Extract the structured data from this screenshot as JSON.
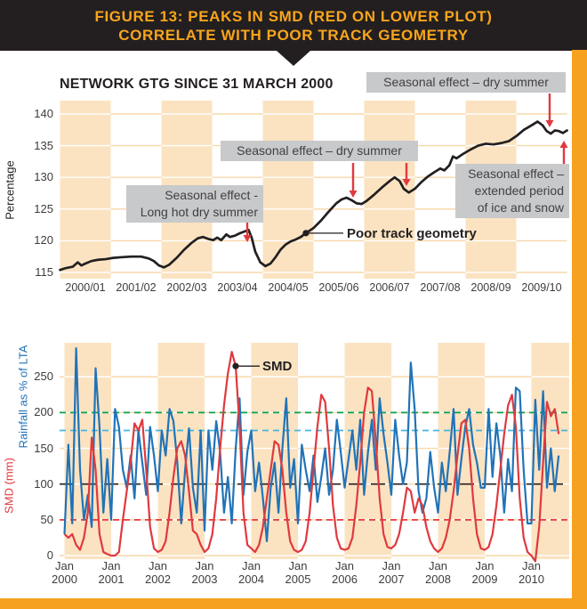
{
  "header": {
    "line1": "FIGURE 13: PEAKS IN SMD (RED ON LOWER PLOT)",
    "line2": "CORRELATE WITH POOR TRACK GEOMETRY"
  },
  "top_chart": {
    "title": "NETWORK GTG SINCE 31 MARCH 2000",
    "y_axis_label": "Percentage",
    "annotations": {
      "dry_summer_top": "Seasonal effect – dry summer",
      "dry_summer_mid": "Seasonal effect – dry summer",
      "long_hot_line1": "Seasonal effect -",
      "long_hot_line2": "Long hot dry summer",
      "ice_snow_line1": "Seasonal effect –",
      "ice_snow_line2": "extended period",
      "ice_snow_line3": "of ice and snow",
      "poor_track": "Poor track geometry"
    }
  },
  "bottom_chart": {
    "y_axis_label_rainfall": "Rainfall as % of LTA",
    "y_axis_label_smd": "SMD (mm)",
    "smd_label": "SMD",
    "month_label": "Jan"
  },
  "colors": {
    "accent_orange": "#f6a11f",
    "header_text": "#f9a51b",
    "band_orange": "#fbe3c1",
    "grid_light": "#f7d8a9",
    "annotation_bg": "#c8c9cb",
    "gtg_line": "#231f20",
    "rainfall_blue": "#2173b8",
    "smd_red": "#e0393e",
    "arrow_red": "#e0393e",
    "ref_green": "#0aa04e",
    "ref_cyan": "#45b5e2",
    "ref_black": "#231f20",
    "ref_red": "#e8393d"
  },
  "chart_data": [
    {
      "type": "line",
      "title": "NETWORK GTG SINCE 31 MARCH 2000",
      "ylabel": "Percentage",
      "ylim": [
        113.7,
        142.1
      ],
      "grid": true,
      "y_ticks": [
        140,
        135,
        130,
        125,
        120,
        115
      ],
      "x_tick_labels": [
        "2000/01",
        "2001/02",
        "2002/03",
        "2003/04",
        "2004/05",
        "2005/06",
        "2006/07",
        "2007/08",
        "2008/09",
        "2009/10"
      ],
      "x_unit": "financial years since April 2000",
      "series": [
        {
          "name": "Network GTG",
          "x": [
            0,
            0.12,
            0.25,
            0.35,
            0.42,
            0.5,
            0.62,
            0.75,
            0.9,
            1.05,
            1.2,
            1.4,
            1.6,
            1.75,
            1.85,
            1.95,
            2.05,
            2.15,
            2.3,
            2.45,
            2.6,
            2.72,
            2.82,
            2.92,
            3.02,
            3.1,
            3.18,
            3.28,
            3.35,
            3.45,
            3.55,
            3.65,
            3.72,
            3.78,
            3.85,
            3.95,
            4.05,
            4.15,
            4.25,
            4.35,
            4.45,
            4.55,
            4.65,
            4.75,
            4.85,
            5.0,
            5.15,
            5.3,
            5.45,
            5.55,
            5.65,
            5.75,
            5.85,
            5.95,
            6.05,
            6.2,
            6.35,
            6.5,
            6.6,
            6.7,
            6.78,
            6.88,
            7.0,
            7.12,
            7.25,
            7.38,
            7.5,
            7.58,
            7.68,
            7.75,
            7.82,
            7.95,
            8.1,
            8.25,
            8.4,
            8.55,
            8.7,
            8.85,
            9.0,
            9.15,
            9.3,
            9.42,
            9.52,
            9.6,
            9.68,
            9.76,
            9.84,
            9.92,
            10.0
          ],
          "values": [
            115.4,
            115.7,
            115.9,
            116.6,
            116.1,
            116.4,
            116.8,
            117.0,
            117.1,
            117.3,
            117.4,
            117.5,
            117.5,
            117.2,
            116.8,
            116.1,
            115.8,
            116.2,
            117.3,
            118.6,
            119.7,
            120.4,
            120.6,
            120.3,
            120.1,
            120.5,
            120.1,
            121.0,
            120.6,
            120.8,
            121.2,
            121.5,
            121.7,
            120.5,
            118.3,
            116.6,
            116.0,
            116.4,
            117.4,
            118.6,
            119.4,
            119.9,
            120.2,
            120.6,
            121.2,
            122.0,
            123.2,
            124.6,
            125.9,
            126.5,
            126.8,
            126.4,
            125.9,
            125.8,
            126.3,
            127.3,
            128.4,
            129.4,
            130.0,
            129.4,
            128.2,
            127.6,
            128.2,
            129.2,
            130.1,
            130.8,
            131.4,
            131.1,
            131.9,
            133.3,
            133.0,
            133.7,
            134.4,
            135.0,
            135.3,
            135.2,
            135.4,
            135.7,
            136.5,
            137.5,
            138.2,
            138.8,
            138.2,
            137.3,
            136.9,
            137.4,
            137.3,
            137.0,
            137.4
          ]
        }
      ],
      "marker": {
        "label": "Poor track geometry",
        "x": 4.85,
        "value": 121.2
      }
    },
    {
      "type": "line",
      "x_start": "Jan 2000",
      "x_interval": "month",
      "y_ticks": [
        250,
        200,
        150,
        100,
        50,
        0
      ],
      "x_tick_years": [
        "2000",
        "2001",
        "2002",
        "2003",
        "2004",
        "2005",
        "2006",
        "2007",
        "2008",
        "2009",
        "2010"
      ],
      "series": [
        {
          "name": "Rainfall as % of LTA",
          "color": "#2173b8",
          "values": [
            30,
            155,
            45,
            290,
            120,
            50,
            85,
            40,
            262,
            180,
            60,
            135,
            50,
            205,
            180,
            120,
            95,
            140,
            80,
            175,
            130,
            85,
            180,
            140,
            90,
            175,
            140,
            205,
            188,
            130,
            45,
            120,
            178,
            95,
            60,
            175,
            35,
            175,
            120,
            188,
            145,
            60,
            110,
            45,
            150,
            220,
            85,
            145,
            175,
            90,
            130,
            80,
            20,
            95,
            130,
            60,
            150,
            220,
            95,
            135,
            45,
            155,
            120,
            90,
            140,
            75,
            110,
            150,
            85,
            120,
            190,
            145,
            95,
            135,
            175,
            120,
            190,
            85,
            145,
            190,
            120,
            220,
            170,
            130,
            85,
            190,
            140,
            100,
            130,
            270,
            205,
            90,
            60,
            80,
            145,
            95,
            60,
            130,
            90,
            145,
            205,
            85,
            135,
            180,
            205,
            155,
            130,
            95,
            95,
            205,
            110,
            185,
            140,
            60,
            135,
            90,
            235,
            230,
            120,
            45,
            45,
            218,
            120,
            230,
            95,
            150,
            90,
            140
          ]
        },
        {
          "name": "SMD (mm)",
          "color": "#e0393e",
          "values": [
            30,
            25,
            30,
            15,
            8,
            25,
            60,
            165,
            120,
            30,
            5,
            2,
            0,
            0,
            5,
            50,
            90,
            130,
            185,
            175,
            190,
            120,
            40,
            10,
            5,
            8,
            20,
            60,
            110,
            150,
            160,
            140,
            90,
            35,
            30,
            15,
            5,
            10,
            30,
            80,
            150,
            210,
            255,
            285,
            265,
            180,
            60,
            15,
            10,
            5,
            15,
            40,
            80,
            120,
            160,
            155,
            120,
            60,
            20,
            8,
            5,
            8,
            20,
            60,
            120,
            180,
            225,
            215,
            150,
            70,
            25,
            10,
            8,
            10,
            25,
            70,
            130,
            200,
            235,
            230,
            160,
            80,
            30,
            12,
            10,
            15,
            30,
            60,
            95,
            90,
            60,
            80,
            70,
            40,
            20,
            10,
            5,
            10,
            25,
            50,
            90,
            140,
            185,
            190,
            150,
            80,
            30,
            10,
            8,
            12,
            30,
            70,
            120,
            170,
            210,
            225,
            180,
            80,
            25,
            5,
            0,
            -8,
            40,
            130,
            215,
            195,
            205,
            170
          ]
        }
      ],
      "ref_lines": [
        {
          "value": 200,
          "color": "#0aa04e",
          "dash": "7 5"
        },
        {
          "value": 175,
          "color": "#45b5e2",
          "dash": "7 5"
        },
        {
          "value": 100,
          "color": "#231f20",
          "dash": "16 9"
        },
        {
          "value": 50,
          "color": "#e8393d",
          "dash": "7 5"
        }
      ],
      "marker": {
        "label": "SMD",
        "month_index": 44,
        "value": 265
      }
    }
  ]
}
